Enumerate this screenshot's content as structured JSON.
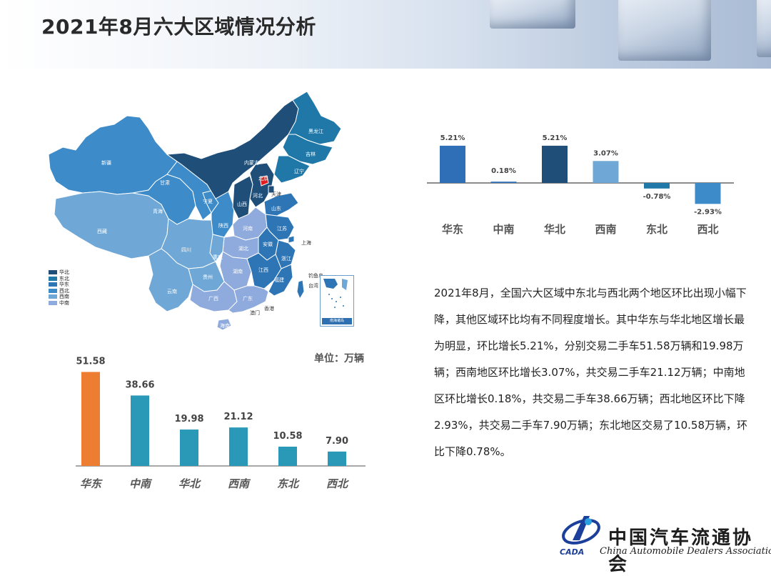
{
  "page": {
    "title": "2021年8月六大区域情况分析"
  },
  "map": {
    "legend": [
      {
        "label": "华北",
        "color": "#1f4e79"
      },
      {
        "label": "东北",
        "color": "#1f78a8"
      },
      {
        "label": "华东",
        "color": "#2e75b6"
      },
      {
        "label": "西北",
        "color": "#3d8bc9"
      },
      {
        "label": "西南",
        "color": "#6fa8d6"
      },
      {
        "label": "中南",
        "color": "#8faadc"
      }
    ],
    "labels": {
      "xinjiang": "新疆",
      "xizang": "西藏",
      "qinghai": "青海",
      "gansu": "甘肃",
      "neimenggu": "内蒙古",
      "heilongjiang": "黑龙江",
      "jilin": "吉林",
      "liaoning": "辽宁",
      "beijing": "北京",
      "tianjin": "天津",
      "hebei": "河北",
      "shanxi": "山西",
      "shandong": "山东",
      "shaanxi": "陕西",
      "ningxia": "宁夏",
      "henan": "河南",
      "jiangsu": "江苏",
      "anhui": "安徽",
      "shanghai": "上海",
      "hubei": "湖北",
      "sichuan": "四川",
      "chongqing": "重庆",
      "zhejiang": "浙江",
      "hunan": "湖南",
      "jiangxi": "江西",
      "fujian": "福建",
      "guizhou": "贵州",
      "yunnan": "云南",
      "guangxi": "广西",
      "guangdong": "广东",
      "taiwan": "台湾",
      "hainan": "海南",
      "xianggang": "香港",
      "aomen": "澳门",
      "diaoyudao": "钓鱼岛"
    },
    "inset_label": "南海诸岛"
  },
  "chart_data": [
    {
      "type": "bar",
      "categories": [
        "华东",
        "中南",
        "华北",
        "西南",
        "东北",
        "西北"
      ],
      "values": [
        5.21,
        0.18,
        5.21,
        3.07,
        -0.78,
        -2.93
      ],
      "data_labels": [
        "5.21%",
        "0.18%",
        "5.21%",
        "3.07%",
        "-0.78%",
        "-2.93%"
      ],
      "colors": [
        "#2e6fb7",
        "#2e6fb7",
        "#1f4e79",
        "#6fa8d6",
        "#1f78a8",
        "#3d8bc9"
      ],
      "grid": false
    },
    {
      "type": "bar",
      "categories": [
        "华东",
        "中南",
        "华北",
        "西南",
        "东北",
        "西北"
      ],
      "values": [
        51.58,
        38.66,
        19.98,
        21.12,
        10.58,
        7.9
      ],
      "data_labels": [
        "51.58",
        "38.66",
        "19.98",
        "21.12",
        "10.58",
        "7.90"
      ],
      "colors": [
        "#ed7d31",
        "#2a99b8",
        "#2a99b8",
        "#2a99b8",
        "#2a99b8",
        "#2a99b8"
      ],
      "unit_label": "单位：万辆",
      "grid": false
    }
  ],
  "description": "2021年8月，全国六大区域中东北与西北两个地区环比出现小幅下降，其他区域环比均有不同程度增长。其中华东与华北地区增长最为明显，环比增长5.21%，分别交易二手车51.58万辆和19.98万辆；西南地区环比增长3.07%，共交易二手车21.12万辆；中南地区环比增长0.18%，共交易二手车38.66万辆；西北地区环比下降2.93%，共交易二手车7.90万辆；东北地区交易了10.58万辆，环比下降0.78%。",
  "logo": {
    "cn": "中国汽车流通协会",
    "en": "China Automobile Dealers Association",
    "abbr": "CADA"
  }
}
